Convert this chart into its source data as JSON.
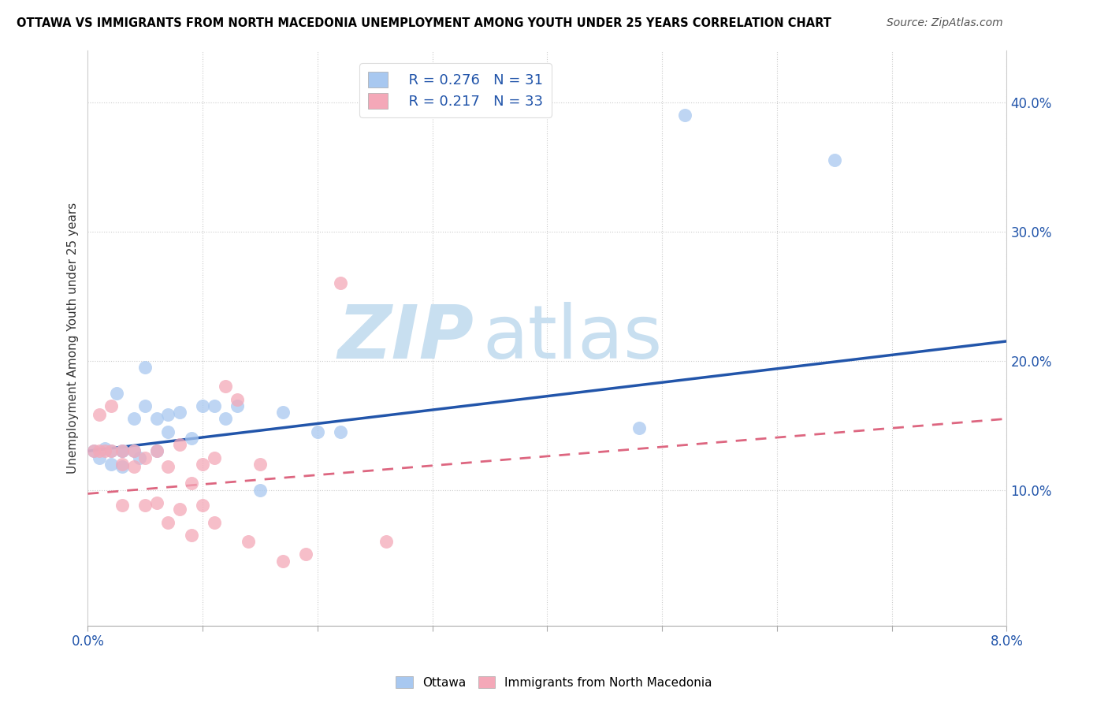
{
  "title": "OTTAWA VS IMMIGRANTS FROM NORTH MACEDONIA UNEMPLOYMENT AMONG YOUTH UNDER 25 YEARS CORRELATION CHART",
  "source": "Source: ZipAtlas.com",
  "ylabel": "Unemployment Among Youth under 25 years",
  "xlim": [
    0.0,
    0.08
  ],
  "ylim": [
    -0.005,
    0.44
  ],
  "xtick_positions": [
    0.0,
    0.01,
    0.02,
    0.03,
    0.04,
    0.05,
    0.06,
    0.07,
    0.08
  ],
  "xtick_labels": [
    "0.0%",
    "",
    "",
    "",
    "",
    "",
    "",
    "",
    "8.0%"
  ],
  "ytick_vals_right": [
    0.1,
    0.2,
    0.3,
    0.4
  ],
  "ytick_labels_right": [
    "10.0%",
    "20.0%",
    "30.0%",
    "40.0%"
  ],
  "ottawa_R": 0.276,
  "ottawa_N": 31,
  "immig_R": 0.217,
  "immig_N": 33,
  "ottawa_color": "#a8c8f0",
  "immig_color": "#f4a8b8",
  "trendline_blue": "#2255aa",
  "trendline_pink": "#dd6680",
  "watermark_zip": "ZIP",
  "watermark_atlas": "atlas",
  "watermark_color_zip": "#c8dff0",
  "watermark_color_atlas": "#c8dff0",
  "legend_label_blue": "Ottawa",
  "legend_label_pink": "Immigrants from North Macedonia",
  "ottawa_trendline_x0": 0.0,
  "ottawa_trendline_y0": 0.13,
  "ottawa_trendline_x1": 0.08,
  "ottawa_trendline_y1": 0.215,
  "immig_trendline_x0": 0.0,
  "immig_trendline_y0": 0.097,
  "immig_trendline_x1": 0.08,
  "immig_trendline_y1": 0.155,
  "ottawa_x": [
    0.0005,
    0.001,
    0.0015,
    0.002,
    0.002,
    0.0025,
    0.003,
    0.003,
    0.003,
    0.004,
    0.004,
    0.0045,
    0.005,
    0.005,
    0.006,
    0.006,
    0.007,
    0.007,
    0.008,
    0.009,
    0.01,
    0.011,
    0.012,
    0.013,
    0.015,
    0.017,
    0.02,
    0.022,
    0.048,
    0.052,
    0.065
  ],
  "ottawa_y": [
    0.13,
    0.125,
    0.132,
    0.13,
    0.12,
    0.175,
    0.13,
    0.118,
    0.13,
    0.13,
    0.155,
    0.125,
    0.195,
    0.165,
    0.155,
    0.13,
    0.158,
    0.145,
    0.16,
    0.14,
    0.165,
    0.165,
    0.155,
    0.165,
    0.1,
    0.16,
    0.145,
    0.145,
    0.148,
    0.39,
    0.355
  ],
  "immig_x": [
    0.0005,
    0.001,
    0.001,
    0.0015,
    0.002,
    0.002,
    0.003,
    0.003,
    0.003,
    0.004,
    0.004,
    0.005,
    0.005,
    0.006,
    0.006,
    0.007,
    0.007,
    0.008,
    0.008,
    0.009,
    0.009,
    0.01,
    0.01,
    0.011,
    0.011,
    0.012,
    0.013,
    0.014,
    0.015,
    0.017,
    0.019,
    0.022,
    0.026
  ],
  "immig_y": [
    0.13,
    0.158,
    0.13,
    0.13,
    0.13,
    0.165,
    0.13,
    0.12,
    0.088,
    0.13,
    0.118,
    0.088,
    0.125,
    0.13,
    0.09,
    0.118,
    0.075,
    0.135,
    0.085,
    0.105,
    0.065,
    0.12,
    0.088,
    0.125,
    0.075,
    0.18,
    0.17,
    0.06,
    0.12,
    0.045,
    0.05,
    0.26,
    0.06
  ]
}
